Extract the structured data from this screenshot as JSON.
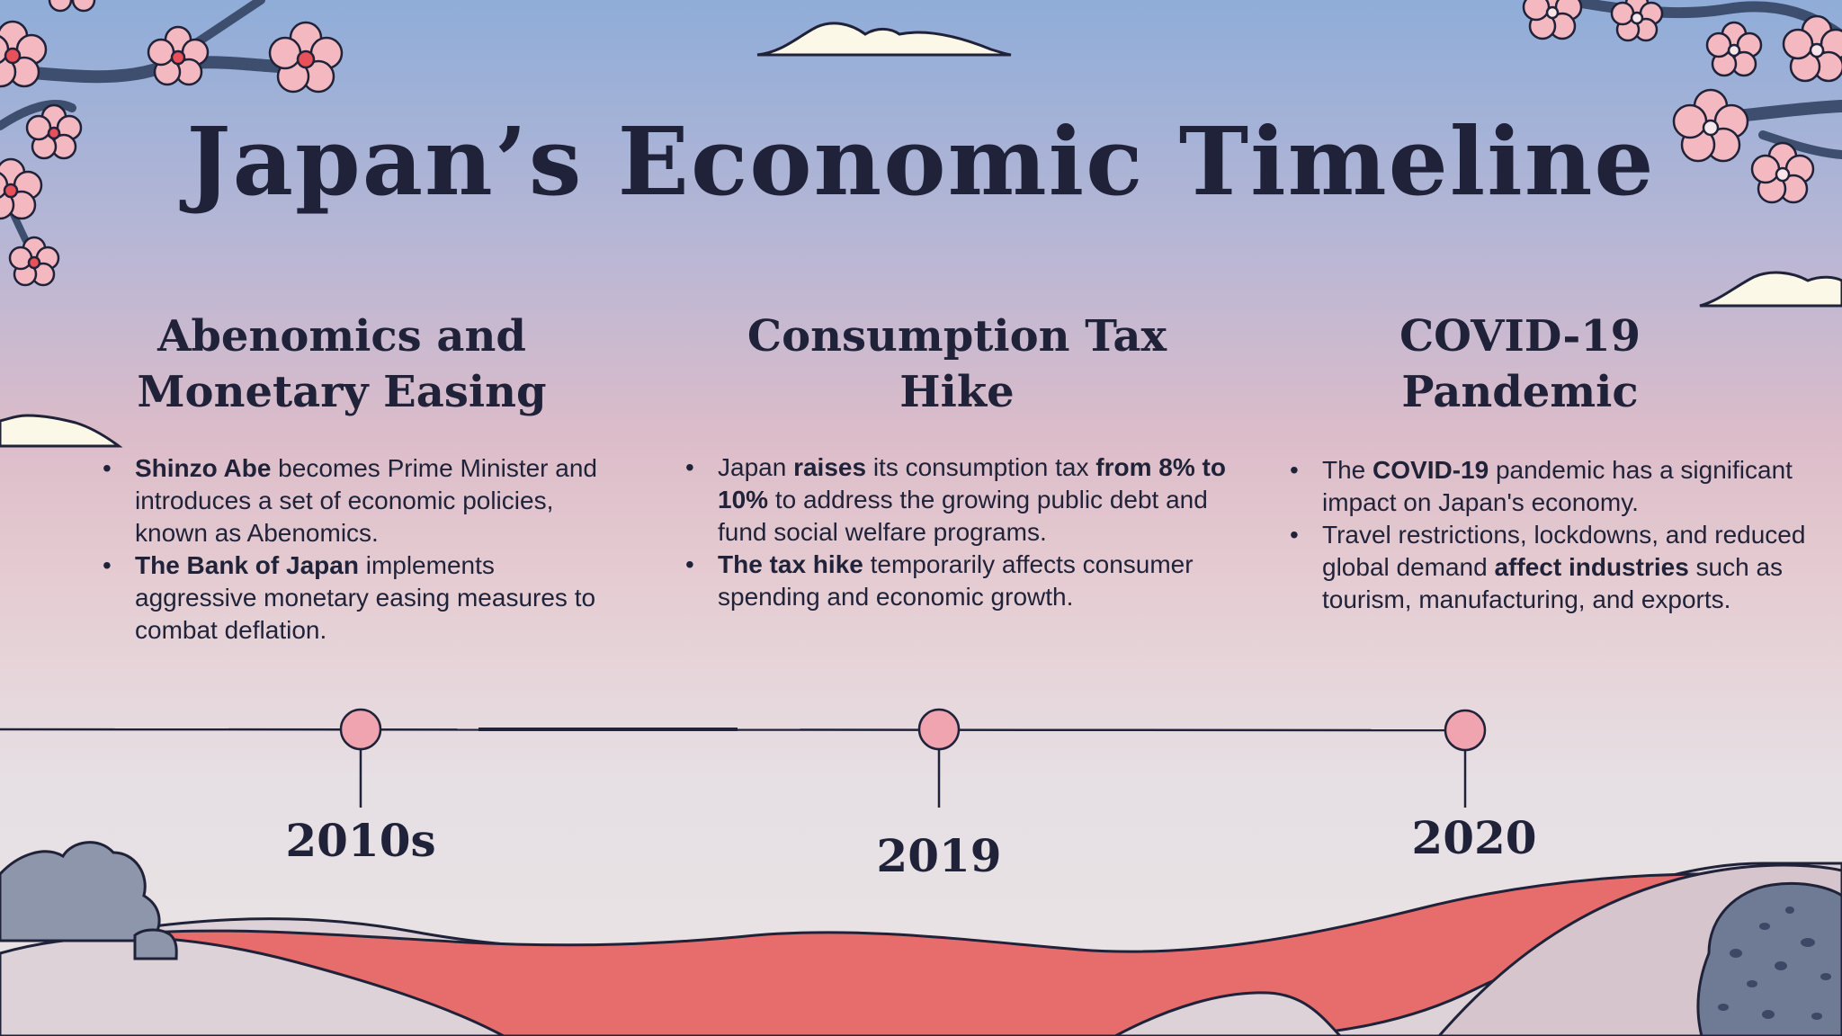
{
  "title": "Japan’s Economic Timeline",
  "columns": [
    {
      "heading_line1": "Abenomics and",
      "heading_line2": "Monetary Easing",
      "bullets": [
        {
          "parts": [
            {
              "bold": "Shinzo Abe"
            },
            {
              "text": " becomes Prime Minister and introduces a set of economic policies, known as Abenomics."
            }
          ]
        },
        {
          "parts": [
            {
              "bold": "The Bank of Japan"
            },
            {
              "text": " implements aggressive monetary easing measures to combat deflation."
            }
          ]
        }
      ]
    },
    {
      "heading_line1": "Consumption Tax",
      "heading_line2": "Hike",
      "bullets": [
        {
          "parts": [
            {
              "text": "Japan "
            },
            {
              "bold": "raises"
            },
            {
              "text": " its consumption tax "
            },
            {
              "bold": "from 8% to 10%"
            },
            {
              "text": " to address the growing public debt and fund social welfare programs."
            }
          ]
        },
        {
          "parts": [
            {
              "bold": "The tax hike"
            },
            {
              "text": " temporarily affects consumer spending and economic growth."
            }
          ]
        }
      ]
    },
    {
      "heading_line1": "COVID-19",
      "heading_line2": "Pandemic",
      "bullets": [
        {
          "parts": [
            {
              "text": "The "
            },
            {
              "bold": "COVID-19"
            },
            {
              "text": " pandemic has a significant impact on Japan's economy."
            }
          ]
        },
        {
          "parts": [
            {
              "text": "Travel restrictions, lockdowns, and reduced global demand "
            },
            {
              "bold": "affect industries"
            },
            {
              "text": " such as tourism, manufacturing, and exports."
            }
          ]
        }
      ]
    }
  ],
  "timeline": {
    "years": [
      "2010s",
      "2019",
      "2020"
    ]
  },
  "colors": {
    "ink": "#1f2238",
    "node_fill": "#f0a4b0",
    "blossom": "#f4b8c0",
    "blossom_center": "#e8505a",
    "branch": "#3e4e6e",
    "cloud": "#fbf8e8",
    "red_hill": "#e76d6c",
    "grey_hill": "#d9cfd6",
    "bush": "#8d96ab"
  }
}
